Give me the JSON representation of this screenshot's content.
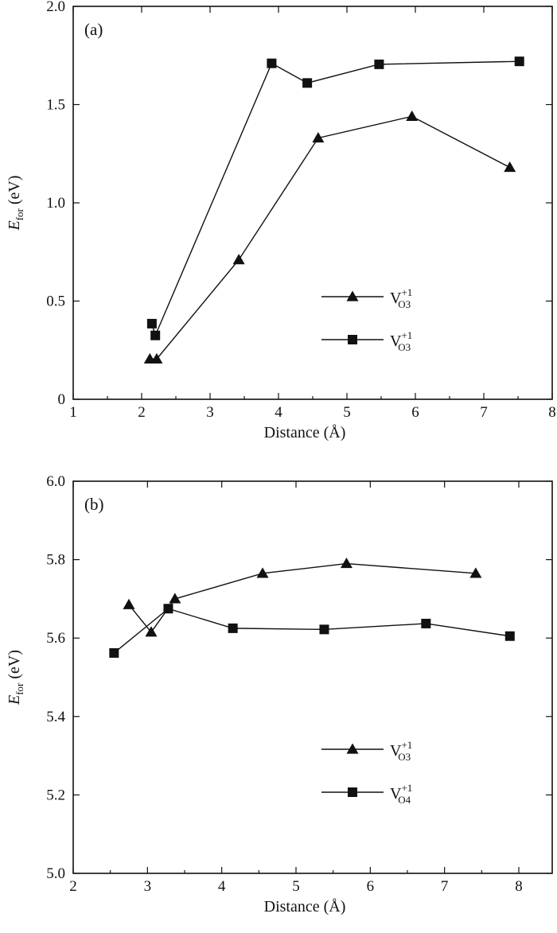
{
  "chart_data": [
    {
      "type": "line",
      "panel_label": "(a)",
      "xlabel": "Distance (Å)",
      "ylabel_main": "E",
      "ylabel_sub": "for",
      "ylabel_unit": " (eV)",
      "xlim": [
        1,
        8
      ],
      "ylim": [
        0,
        2.0
      ],
      "xticks": [
        1,
        2,
        3,
        4,
        5,
        6,
        7,
        8
      ],
      "xtick_labels": [
        "1",
        "2",
        "3",
        "4",
        "5",
        "6",
        "7",
        "8"
      ],
      "yticks": [
        0,
        0.5,
        1.0,
        1.5,
        2.0
      ],
      "ytick_labels": [
        "0",
        "0.5",
        "1.0",
        "1.5",
        "2.0"
      ],
      "grid": false,
      "legend_position": "lower-right",
      "series": [
        {
          "marker": "triangle",
          "legend_main": "V",
          "legend_sup": "+1",
          "legend_sub": "O3",
          "x": [
            2.12,
            2.22,
            3.42,
            4.58,
            5.95,
            7.38
          ],
          "y": [
            0.205,
            0.205,
            0.71,
            1.33,
            1.44,
            1.18
          ]
        },
        {
          "marker": "square",
          "legend_main": "V",
          "legend_sup": "+1",
          "legend_sub": "O3",
          "x": [
            2.15,
            2.2,
            3.9,
            4.42,
            5.47,
            7.52
          ],
          "y": [
            0.385,
            0.325,
            1.71,
            1.61,
            1.705,
            1.72
          ]
        }
      ]
    },
    {
      "type": "line",
      "panel_label": "(b)",
      "xlabel": "Distance (Å)",
      "ylabel_main": "E",
      "ylabel_sub": "for",
      "ylabel_unit": " (eV)",
      "xlim": [
        2,
        8.45
      ],
      "ylim": [
        5.0,
        6.0
      ],
      "xticks": [
        2,
        3,
        4,
        5,
        6,
        7,
        8
      ],
      "xtick_labels": [
        "2",
        "3",
        "4",
        "5",
        "6",
        "7",
        "8"
      ],
      "yticks": [
        5.0,
        5.2,
        5.4,
        5.6,
        5.8,
        6.0
      ],
      "ytick_labels": [
        "5.0",
        "5.2",
        "5.4",
        "5.6",
        "5.8",
        "6.0"
      ],
      "grid": false,
      "legend_position": "lower-right",
      "series": [
        {
          "marker": "triangle",
          "legend_main": "V",
          "legend_sup": "+1",
          "legend_sub": "O3",
          "x": [
            2.75,
            3.05,
            3.37,
            4.55,
            5.68,
            7.42
          ],
          "y": [
            5.685,
            5.615,
            5.7,
            5.765,
            5.79,
            5.765
          ]
        },
        {
          "marker": "square",
          "legend_main": "V",
          "legend_sup": "+1",
          "legend_sub": "O4",
          "x": [
            2.55,
            3.28,
            4.15,
            5.38,
            6.75,
            7.88
          ],
          "y": [
            5.562,
            5.675,
            5.625,
            5.622,
            5.637,
            5.605
          ]
        }
      ]
    }
  ]
}
